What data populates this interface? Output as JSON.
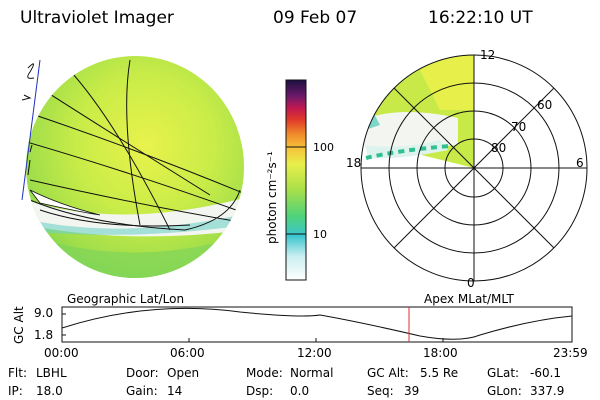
{
  "header": {
    "instrument": "Ultraviolet Imager",
    "date": "09 Feb 07",
    "time": "16:22:10 UT"
  },
  "colorbar": {
    "unit_label": "photon cm⁻²s⁻¹",
    "ticks": [
      "100",
      "10"
    ]
  },
  "polar_plot": {
    "mlt_labels": [
      "12",
      "18",
      "6",
      "0"
    ],
    "mlat_labels": [
      "60",
      "70",
      "80"
    ]
  },
  "panel_labels": {
    "left": "Geographic Lat/Lon",
    "right": "Apex MLat/MLT"
  },
  "altitude_plot": {
    "ylabel": "GC Alt",
    "y_ticks": [
      "9.0",
      "1.8"
    ],
    "x_ticks": [
      "00:00",
      "06:00",
      "12:00",
      "18:00",
      "23:59"
    ],
    "current_marker": "16:22"
  },
  "status": {
    "row1": [
      {
        "key": "Flt:",
        "val": "LBHL"
      },
      {
        "key": "Door:",
        "val": "Open"
      },
      {
        "key": "Mode:",
        "val": "Normal"
      },
      {
        "key": "GC Alt:",
        "val": "5.5 Re"
      },
      {
        "key": "GLat:",
        "val": "-60.1"
      }
    ],
    "row2": [
      {
        "key": "IP:",
        "val": "18.0"
      },
      {
        "key": "Gain:",
        "val": "14"
      },
      {
        "key": "Dsp:",
        "val": "0.0"
      },
      {
        "key": "Seq:",
        "val": "39"
      },
      {
        "key": "GLon:",
        "val": "337.9"
      }
    ]
  },
  "colors": {
    "disk_green": "#b8e34a",
    "disk_yellow": "#e8f04a",
    "dayglow_white": "#f2f5f0",
    "cyan": "#38c7cf",
    "marker_red": "#e03030"
  }
}
